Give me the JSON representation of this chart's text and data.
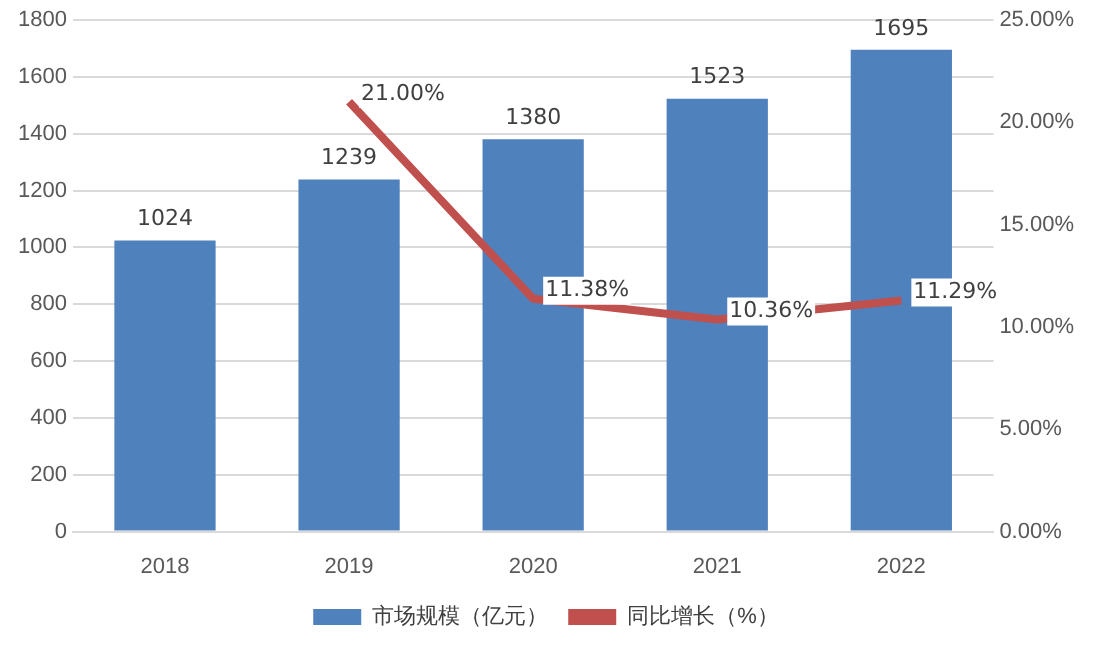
{
  "chart_data": {
    "type": "bar",
    "categories": [
      "2018",
      "2019",
      "2020",
      "2021",
      "2022"
    ],
    "series": [
      {
        "name": "市场规模（亿元）",
        "color": "#4f81bd",
        "values": [
          1024,
          1239,
          1380,
          1523,
          1695
        ],
        "value_labels": [
          "1024",
          "1239",
          "1380",
          "1523",
          "1695"
        ]
      },
      {
        "name": "同比增长（%）",
        "type": "line",
        "axis": "y2",
        "color": "#c0504d",
        "values": [
          null,
          21.0,
          11.38,
          10.36,
          11.29
        ],
        "value_labels": [
          null,
          "21.00%",
          "11.38%",
          "10.36%",
          "11.29%"
        ]
      }
    ],
    "ylim": [
      0,
      1800
    ],
    "yticks": [
      0,
      200,
      400,
      600,
      800,
      1000,
      1200,
      1400,
      1600,
      1800
    ],
    "y2lim": [
      0,
      25
    ],
    "y2ticks": [
      {
        "value": 0,
        "label": "0.00%"
      },
      {
        "value": 5,
        "label": "5.00%"
      },
      {
        "value": 10,
        "label": "10.00%"
      },
      {
        "value": 15,
        "label": "15.00%"
      },
      {
        "value": 20,
        "label": "20.00%"
      },
      {
        "value": 25,
        "label": "25.00%"
      }
    ],
    "grid": "y",
    "legend": "bottom",
    "marker": "none",
    "line_style": "solid"
  }
}
